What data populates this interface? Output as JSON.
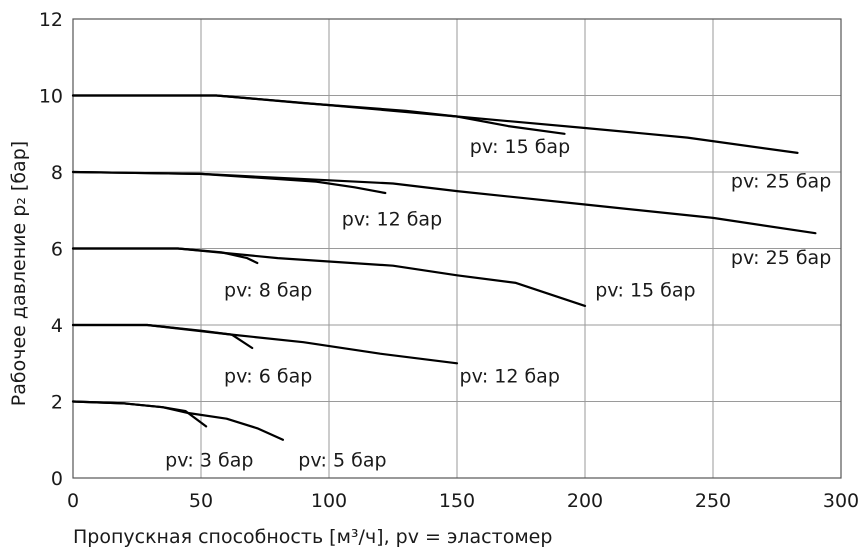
{
  "chart_data": {
    "type": "line",
    "title": "",
    "xlabel": "Пропускная способность [м³/ч], pv = эластомер",
    "ylabel": "Рабочее давление  p₂ [бар]",
    "xlim": [
      0,
      300
    ],
    "ylim": [
      0,
      12
    ],
    "x_ticks": [
      0,
      50,
      100,
      150,
      200,
      250,
      300
    ],
    "y_ticks": [
      0,
      2,
      4,
      6,
      8,
      10,
      12
    ],
    "grid": true,
    "legend": "none",
    "line_color": "#000000",
    "grid_color": "#9a9a9a",
    "series": [
      {
        "points": [
          [
            0,
            10
          ],
          [
            56,
            10
          ],
          [
            90,
            9.8
          ],
          [
            130,
            9.6
          ],
          [
            150,
            9.45
          ],
          [
            170,
            9.2
          ],
          [
            192,
            9.0
          ]
        ]
      },
      {
        "points": [
          [
            0,
            10
          ],
          [
            56,
            10
          ],
          [
            100,
            9.75
          ],
          [
            150,
            9.45
          ],
          [
            200,
            9.15
          ],
          [
            240,
            8.9
          ],
          [
            283,
            8.5
          ]
        ]
      },
      {
        "points": [
          [
            0,
            8
          ],
          [
            50,
            7.95
          ],
          [
            95,
            7.75
          ],
          [
            110,
            7.6
          ],
          [
            122,
            7.45
          ]
        ]
      },
      {
        "points": [
          [
            0,
            8
          ],
          [
            50,
            7.95
          ],
          [
            125,
            7.7
          ],
          [
            150,
            7.5
          ],
          [
            200,
            7.15
          ],
          [
            250,
            6.8
          ],
          [
            290,
            6.4
          ]
        ]
      },
      {
        "points": [
          [
            0,
            6
          ],
          [
            41,
            6
          ],
          [
            58,
            5.9
          ],
          [
            68,
            5.75
          ],
          [
            72,
            5.62
          ]
        ]
      },
      {
        "points": [
          [
            0,
            6
          ],
          [
            41,
            6
          ],
          [
            80,
            5.75
          ],
          [
            125,
            5.55
          ],
          [
            150,
            5.3
          ],
          [
            173,
            5.1
          ],
          [
            200,
            4.5
          ]
        ]
      },
      {
        "points": [
          [
            0,
            4
          ],
          [
            29,
            4
          ],
          [
            50,
            3.85
          ],
          [
            62,
            3.75
          ],
          [
            70,
            3.4
          ]
        ]
      },
      {
        "points": [
          [
            0,
            4
          ],
          [
            29,
            4
          ],
          [
            62,
            3.75
          ],
          [
            90,
            3.55
          ],
          [
            120,
            3.25
          ],
          [
            150,
            3.0
          ]
        ]
      },
      {
        "points": [
          [
            0,
            2
          ],
          [
            20,
            1.95
          ],
          [
            35,
            1.85
          ],
          [
            44,
            1.75
          ],
          [
            52,
            1.35
          ]
        ]
      },
      {
        "points": [
          [
            0,
            2
          ],
          [
            20,
            1.95
          ],
          [
            35,
            1.85
          ],
          [
            45,
            1.7
          ],
          [
            60,
            1.55
          ],
          [
            72,
            1.3
          ],
          [
            82,
            1.0
          ]
        ]
      }
    ],
    "annotations": [
      {
        "text": "pv: 15 бар",
        "x": 155,
        "y": 8.5
      },
      {
        "text": "pv: 25 бар",
        "x": 257,
        "y": 7.6
      },
      {
        "text": "pv: 12 бар",
        "x": 105,
        "y": 6.6
      },
      {
        "text": "pv: 25 бар",
        "x": 257,
        "y": 5.6
      },
      {
        "text": "pv: 8 бар",
        "x": 59,
        "y": 4.75
      },
      {
        "text": "pv: 15 бар",
        "x": 204,
        "y": 4.75
      },
      {
        "text": "pv: 6 бар",
        "x": 59,
        "y": 2.5
      },
      {
        "text": "pv: 12 бар",
        "x": 151,
        "y": 2.5
      },
      {
        "text": "pv: 3 бар",
        "x": 36,
        "y": 0.3
      },
      {
        "text": "pv: 5 бар",
        "x": 88,
        "y": 0.3
      }
    ]
  }
}
